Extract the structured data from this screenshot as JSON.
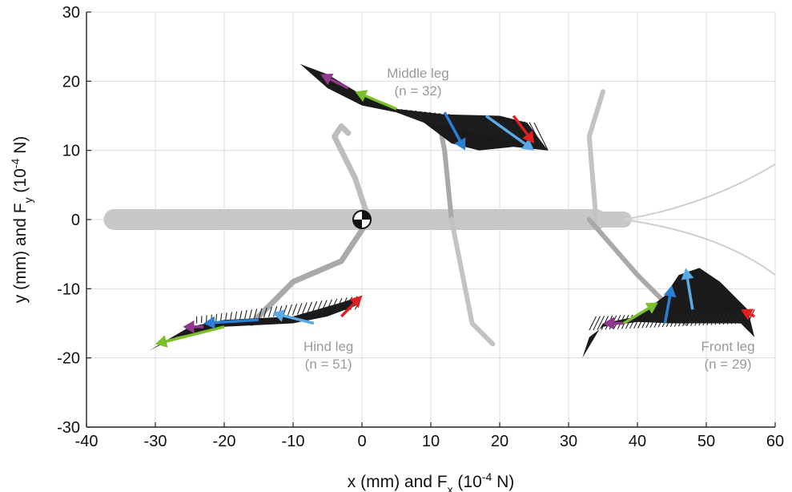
{
  "chart_data": {
    "type": "scatter",
    "xlabel": {
      "main": "x (mm) and F",
      "sub": "x",
      "rest": " (10",
      "sup": "-4",
      "end": " N)"
    },
    "ylabel": {
      "main": "y (mm) and F",
      "sub": "y",
      "rest": " (10",
      "sup": "-4",
      "end": " N)"
    },
    "xlim": [
      -40,
      60
    ],
    "ylim": [
      -30,
      30
    ],
    "xticks": [
      -40,
      -30,
      -20,
      -10,
      0,
      10,
      20,
      30,
      40,
      50,
      60
    ],
    "yticks": [
      -30,
      -20,
      -10,
      0,
      10,
      20,
      30
    ],
    "grid": true,
    "center_of_mass": [
      0,
      0
    ],
    "legs": [
      {
        "name": "Middle leg",
        "n_label": "(n = 32)",
        "label_pos": [
          0,
          20.5
        ],
        "outline": [
          [
            -9,
            22.5
          ],
          [
            -5,
            21
          ],
          [
            0,
            18
          ],
          [
            5,
            16
          ],
          [
            12,
            15.2
          ],
          [
            20,
            15
          ],
          [
            24,
            14
          ],
          [
            27,
            10
          ],
          [
            22,
            10.5
          ],
          [
            17,
            10
          ],
          [
            13,
            11
          ],
          [
            9,
            14
          ],
          [
            5,
            15.5
          ],
          [
            0,
            16.5
          ],
          [
            -5,
            19
          ]
        ],
        "fan_base": [
          [
            5,
            16
          ],
          [
            25,
            14
          ]
        ],
        "fan_tip": [
          [
            8,
            14.5
          ],
          [
            27,
            10
          ]
        ],
        "fan_count": 30,
        "arrows": [
          {
            "color": "#8e3a8e",
            "from": [
              -2,
              19
            ],
            "to": [
              -6,
              21
            ]
          },
          {
            "color": "#7cbf2a",
            "from": [
              5,
              16
            ],
            "to": [
              -1,
              18.5
            ]
          },
          {
            "color": "#2a7fd4",
            "from": [
              12,
              15.5
            ],
            "to": [
              15,
              10
            ]
          },
          {
            "color": "#5aaae8",
            "from": [
              18,
              15
            ],
            "to": [
              25,
              10
            ]
          },
          {
            "color": "#e02020",
            "from": [
              22,
              15
            ],
            "to": [
              25,
              11
            ]
          }
        ]
      },
      {
        "name": "Hind leg",
        "n_label": "(n = 51)",
        "label_pos": [
          -13,
          -19
        ],
        "outline": [
          [
            -31,
            -19
          ],
          [
            -25,
            -15.5
          ],
          [
            -20,
            -14.5
          ],
          [
            -10,
            -14
          ],
          [
            -3,
            -12
          ],
          [
            0,
            -11
          ],
          [
            -1,
            -12.5
          ],
          [
            -5,
            -14
          ],
          [
            -10,
            -15
          ],
          [
            -20,
            -15.5
          ],
          [
            -27,
            -17
          ]
        ],
        "fan_base": [
          [
            -24,
            -15
          ],
          [
            -1,
            -13
          ]
        ],
        "fan_tip": [
          [
            -24,
            -14
          ],
          [
            0,
            -11
          ]
        ],
        "fan_count": 34,
        "arrows": [
          {
            "color": "#8e3a8e",
            "from": [
              -23,
              -15.5
            ],
            "to": [
              -26,
              -15.5
            ]
          },
          {
            "color": "#7cbf2a",
            "from": [
              -20,
              -15.5
            ],
            "to": [
              -30,
              -18
            ]
          },
          {
            "color": "#2a7fd4",
            "from": [
              -15,
              -14.5
            ],
            "to": [
              -23,
              -15
            ]
          },
          {
            "color": "#5aaae8",
            "from": [
              -7,
              -15
            ],
            "to": [
              -13,
              -13.5
            ]
          },
          {
            "color": "#e02020",
            "from": [
              -3,
              -14
            ],
            "to": [
              0,
              -11
            ]
          }
        ]
      },
      {
        "name": "Front leg",
        "n_label": "(n = 29)",
        "label_pos": [
          45,
          -19
        ],
        "outline": [
          [
            32,
            -20
          ],
          [
            35,
            -15
          ],
          [
            40,
            -14
          ],
          [
            44,
            -11
          ],
          [
            46,
            -8
          ],
          [
            49,
            -7
          ],
          [
            52,
            -9
          ],
          [
            56,
            -13
          ],
          [
            57,
            -17
          ],
          [
            55,
            -15
          ],
          [
            52,
            -15
          ],
          [
            48,
            -15
          ],
          [
            45,
            -15
          ],
          [
            40,
            -14.8
          ],
          [
            35,
            -15.5
          ],
          [
            33,
            -17
          ]
        ],
        "fan_base": [
          [
            33,
            -16
          ],
          [
            56,
            -15
          ]
        ],
        "fan_tip": [
          [
            34,
            -14
          ],
          [
            57,
            -13
          ]
        ],
        "fan_count": 40,
        "arrows": [
          {
            "color": "#8e3a8e",
            "from": [
              38,
              -15
            ],
            "to": [
              35,
              -15
            ]
          },
          {
            "color": "#7cbf2a",
            "from": [
              38,
              -15
            ],
            "to": [
              43,
              -12
            ]
          },
          {
            "color": "#2a7fd4",
            "from": [
              44,
              -15
            ],
            "to": [
              45,
              -9.5
            ]
          },
          {
            "color": "#5aaae8",
            "from": [
              48,
              -13
            ],
            "to": [
              47,
              -7
            ]
          },
          {
            "color": "#e02020",
            "from": [
              57,
              -14
            ],
            "to": [
              55,
              -13
            ]
          }
        ]
      }
    ]
  }
}
